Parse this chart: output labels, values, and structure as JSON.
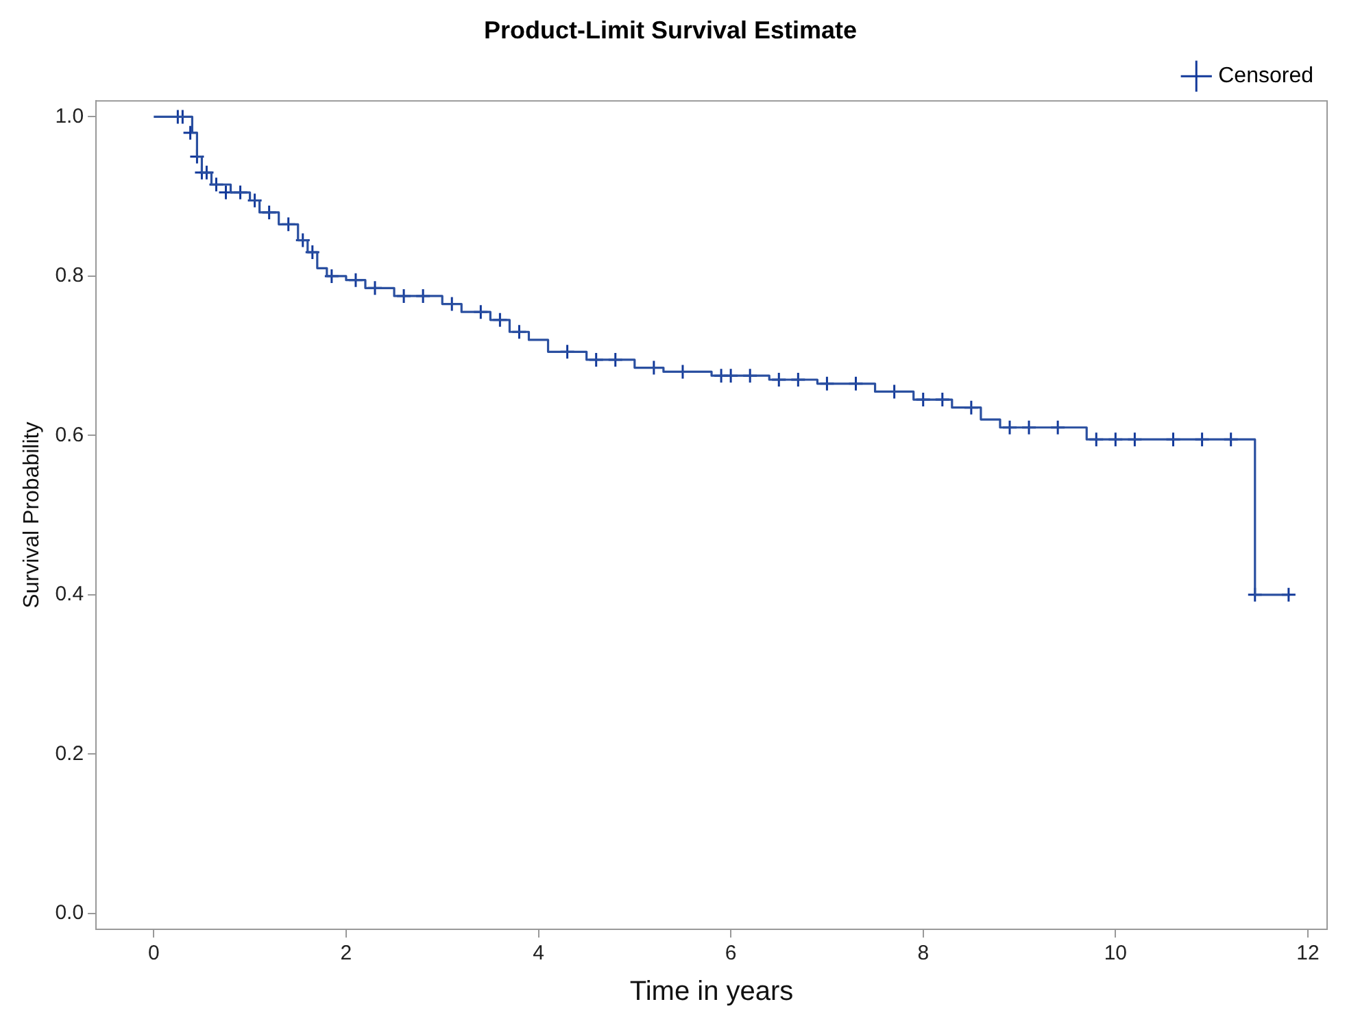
{
  "chart_data": {
    "type": "step",
    "title": "Product-Limit Survival Estimate",
    "xlabel": "Time in years",
    "ylabel": "Survival Probability",
    "xlim": [
      -0.6,
      12.2
    ],
    "xticks": [
      0,
      2,
      4,
      6,
      8,
      10,
      12
    ],
    "ylim": [
      -0.02,
      1.02
    ],
    "yticks": [
      {
        "value": 0,
        "label": "0.0"
      },
      {
        "value": 0.2,
        "label": "0.2"
      },
      {
        "value": 0.4,
        "label": "0.4"
      },
      {
        "value": 0.6,
        "label": "0.6"
      },
      {
        "value": 0.8,
        "label": "0.8"
      },
      {
        "value": 1,
        "label": "1.0"
      }
    ],
    "grid": false,
    "legend": "top right",
    "series": [
      {
        "color": "#2a4fa0",
        "marker": "none",
        "x": [
          0,
          0.4,
          0.45,
          0.5,
          0.6,
          0.8,
          1.0,
          1.1,
          1.3,
          1.5,
          1.6,
          1.7,
          1.8,
          2.0,
          2.2,
          2.5,
          3.0,
          3.2,
          3.5,
          3.7,
          3.9,
          4.1,
          4.5,
          5.0,
          5.3,
          5.8,
          6.4,
          6.9,
          7.5,
          7.9,
          8.3,
          8.6,
          8.8,
          9.7,
          11.45,
          11.8
        ],
        "values": [
          1.0,
          0.98,
          0.95,
          0.93,
          0.915,
          0.905,
          0.895,
          0.88,
          0.865,
          0.845,
          0.83,
          0.81,
          0.8,
          0.795,
          0.785,
          0.775,
          0.765,
          0.755,
          0.745,
          0.73,
          0.72,
          0.705,
          0.695,
          0.685,
          0.68,
          0.675,
          0.67,
          0.665,
          0.655,
          0.645,
          0.635,
          0.62,
          0.61,
          0.595,
          0.4,
          0.4
        ]
      },
      {
        "type": "scatter",
        "name": "Censored",
        "color": "#12399a",
        "marker": "cross",
        "x": [
          0.25,
          0.3,
          0.38,
          0.45,
          0.5,
          0.55,
          0.65,
          0.75,
          0.9,
          1.05,
          1.2,
          1.4,
          1.55,
          1.65,
          1.85,
          2.1,
          2.3,
          2.6,
          2.8,
          3.1,
          3.4,
          3.6,
          3.8,
          4.3,
          4.6,
          4.8,
          5.2,
          5.5,
          5.9,
          6.0,
          6.2,
          6.5,
          6.7,
          7.0,
          7.3,
          7.7,
          8.0,
          8.2,
          8.5,
          8.9,
          9.1,
          9.4,
          9.8,
          10.0,
          10.2,
          10.6,
          10.9,
          11.2,
          11.45,
          11.8
        ],
        "values": [
          1.0,
          1.0,
          0.98,
          0.95,
          0.93,
          0.93,
          0.915,
          0.905,
          0.905,
          0.895,
          0.88,
          0.865,
          0.845,
          0.83,
          0.8,
          0.795,
          0.785,
          0.775,
          0.775,
          0.765,
          0.755,
          0.745,
          0.73,
          0.705,
          0.695,
          0.695,
          0.685,
          0.68,
          0.675,
          0.675,
          0.675,
          0.67,
          0.67,
          0.665,
          0.665,
          0.655,
          0.645,
          0.645,
          0.635,
          0.61,
          0.61,
          0.61,
          0.595,
          0.595,
          0.595,
          0.595,
          0.595,
          0.595,
          0.4,
          0.4
        ]
      }
    ]
  }
}
